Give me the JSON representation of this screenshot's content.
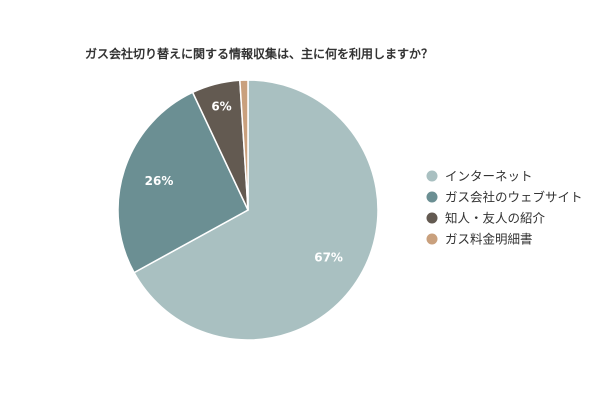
{
  "chart_data": {
    "type": "pie",
    "title": "ガス会社切り替えに関する情報収集は、主に何を利用しますか？",
    "slices": [
      {
        "label": "インターネット",
        "value": 67,
        "display": "67%",
        "color": "#a9c0c1"
      },
      {
        "label": "ガス会社のウェブサイト",
        "value": 26,
        "display": "26%",
        "color": "#6b8f93"
      },
      {
        "label": "知人・友人の紹介",
        "value": 6,
        "display": "6%",
        "color": "#635a51"
      },
      {
        "label": "ガス料金明細書",
        "value": 1,
        "display": "",
        "color": "#c9a07d"
      }
    ],
    "legend_position": "right",
    "start_angle_deg": 0,
    "direction": "clockwise"
  }
}
